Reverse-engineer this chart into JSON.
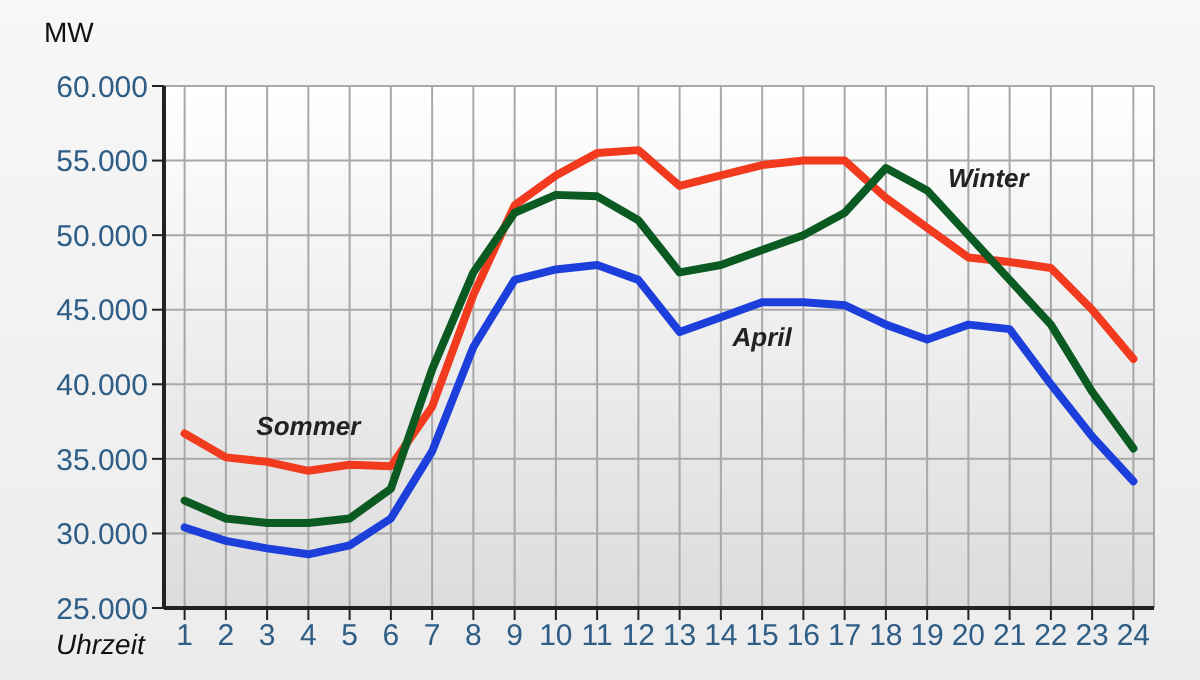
{
  "chart_data": {
    "type": "line",
    "xlabel": "Uhrzeit",
    "ylabel": "MW",
    "x": [
      1,
      2,
      3,
      4,
      5,
      6,
      7,
      8,
      9,
      10,
      11,
      12,
      13,
      14,
      15,
      16,
      17,
      18,
      19,
      20,
      21,
      22,
      23,
      24
    ],
    "series": [
      {
        "name": "Sommer",
        "color": "#f23a1e",
        "values": [
          36700,
          35100,
          34800,
          34200,
          34600,
          34500,
          38500,
          46000,
          52000,
          54000,
          55500,
          55700,
          53300,
          54000,
          54700,
          55000,
          55000,
          52500,
          50500,
          48500,
          48200,
          47800,
          45000,
          41700
        ]
      },
      {
        "name": "Winter",
        "color": "#0b5a22",
        "values": [
          32200,
          31000,
          30700,
          30700,
          31000,
          33000,
          41000,
          47500,
          51500,
          52700,
          52600,
          51000,
          47500,
          48000,
          49000,
          50000,
          51500,
          54500,
          53000,
          50000,
          47000,
          44000,
          39500,
          35700
        ]
      },
      {
        "name": "April",
        "color": "#1c3fdc",
        "values": [
          30400,
          29500,
          29000,
          28600,
          29200,
          31000,
          35500,
          42500,
          47000,
          47700,
          48000,
          47000,
          43500,
          44500,
          45500,
          45500,
          45300,
          44000,
          43000,
          44000,
          43700,
          40000,
          36500,
          33500
        ]
      }
    ],
    "xlim": [
      0.5,
      24.5
    ],
    "xticks": [
      1,
      2,
      3,
      4,
      5,
      6,
      7,
      8,
      9,
      10,
      11,
      12,
      13,
      14,
      15,
      16,
      17,
      18,
      19,
      20,
      21,
      22,
      23,
      24
    ],
    "ylim": [
      25000,
      60000
    ],
    "yticks": [
      {
        "value": 25000,
        "label": "25.000"
      },
      {
        "value": 30000,
        "label": "30.000"
      },
      {
        "value": 35000,
        "label": "35.000"
      },
      {
        "value": 40000,
        "label": "40.000"
      },
      {
        "value": 45000,
        "label": "45.000"
      },
      {
        "value": 50000,
        "label": "50.000"
      },
      {
        "value": 55000,
        "label": "55.000"
      },
      {
        "value": 60000,
        "label": "60.000"
      }
    ],
    "grid": true,
    "legend": false,
    "marker": "none",
    "line_style": "solid"
  }
}
